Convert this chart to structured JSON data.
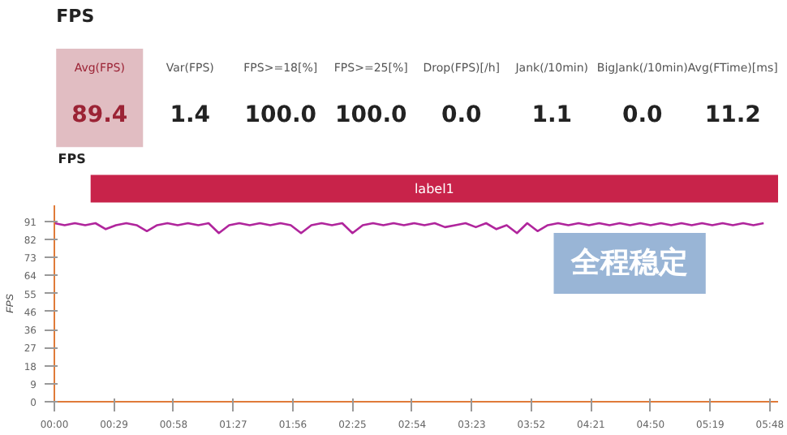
{
  "chart_data": [
    {
      "type": "other",
      "title": "FPS",
      "categories": [
        "Avg(FPS)",
        "Var(FPS)",
        "FPS>=18[%]",
        "FPS>=25[%]",
        "Drop(FPS)[/h]",
        "Jank(/10min)",
        "BigJank(/10min)",
        "Avg(FTime)[ms]"
      ],
      "colors": [
        "#9b2335",
        "#222222",
        "#222222",
        "#222222",
        "#222222",
        "#222222",
        "#222222",
        "#222222"
      ],
      "value_labels": [
        "89.4",
        "1.4",
        "100.0",
        "100.0",
        "0.0",
        "1.1",
        "0.0",
        "11.2"
      ]
    },
    {
      "type": "line",
      "title": "FPS",
      "ylabel": "FPS",
      "annotations": [
        "label1",
        "全程稳定"
      ],
      "x": [
        0,
        5,
        10,
        15,
        20,
        25,
        30,
        35,
        40,
        45,
        50,
        55,
        60,
        65,
        70,
        75,
        80,
        85,
        90,
        95,
        100,
        105,
        110,
        115,
        120,
        125,
        130,
        135,
        140,
        145,
        150,
        155,
        160,
        165,
        170,
        175,
        180,
        185,
        190,
        195,
        200,
        205,
        210,
        215,
        220,
        225,
        230,
        235,
        240,
        245,
        250,
        255,
        260,
        265,
        270,
        275,
        280,
        285,
        290,
        295,
        300,
        305,
        310,
        315,
        320,
        325,
        330,
        335,
        340,
        345
      ],
      "series": [
        {
          "color": "#b0259c",
          "values": [
            90,
            89,
            90,
            89,
            90,
            87,
            89,
            90,
            89,
            86,
            89,
            90,
            89,
            90,
            89,
            90,
            85,
            89,
            90,
            89,
            90,
            89,
            90,
            89,
            85,
            89,
            90,
            89,
            90,
            85,
            89,
            90,
            89,
            90,
            89,
            90,
            89,
            90,
            88,
            89,
            90,
            88,
            90,
            87,
            89,
            85,
            90,
            86,
            89,
            90,
            89,
            90,
            89,
            90,
            89,
            90,
            89,
            90,
            89,
            90,
            89,
            90,
            89,
            90,
            89,
            90,
            89,
            90,
            89,
            90
          ]
        }
      ],
      "xlim": [
        0,
        352
      ],
      "ylim": [
        0,
        99
      ],
      "xticks": [
        {
          "value": 0,
          "label": "00:00"
        },
        {
          "value": 29,
          "label": "00:29"
        },
        {
          "value": 58,
          "label": "00:58"
        },
        {
          "value": 87,
          "label": "01:27"
        },
        {
          "value": 116,
          "label": "01:56"
        },
        {
          "value": 145,
          "label": "02:25"
        },
        {
          "value": 174,
          "label": "02:54"
        },
        {
          "value": 203,
          "label": "03:23"
        },
        {
          "value": 232,
          "label": "03:52"
        },
        {
          "value": 261,
          "label": "04:21"
        },
        {
          "value": 290,
          "label": "04:50"
        },
        {
          "value": 319,
          "label": "05:19"
        },
        {
          "value": 348,
          "label": "05:48"
        }
      ],
      "yticks": [
        0,
        {
          "value": 9.1,
          "label": "9"
        },
        {
          "value": 18.2,
          "label": "18"
        },
        {
          "value": 27.3,
          "label": "27"
        },
        {
          "value": 36.4,
          "label": "36"
        },
        {
          "value": 45.5,
          "label": "46"
        },
        {
          "value": 54.6,
          "label": "55"
        },
        {
          "value": 63.7,
          "label": "64"
        },
        {
          "value": 72.8,
          "label": "73"
        },
        {
          "value": 81.9,
          "label": "82"
        },
        91
      ]
    }
  ]
}
